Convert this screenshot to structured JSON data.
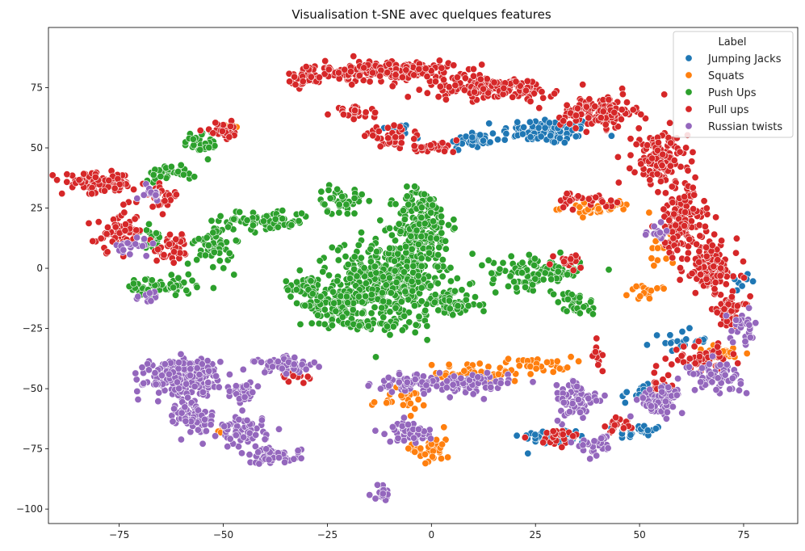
{
  "chart_data": {
    "type": "scatter",
    "title": "Visualisation t-SNE avec quelques features",
    "xlabel": "",
    "ylabel": "",
    "xlim": [
      -92,
      88
    ],
    "ylim": [
      -106,
      100
    ],
    "xticks": [
      -75,
      -50,
      -25,
      0,
      25,
      50,
      75
    ],
    "yticks": [
      -100,
      -75,
      -50,
      -25,
      0,
      25,
      50,
      75
    ],
    "xtick_labels": [
      "−75",
      "−50",
      "−25",
      "0",
      "25",
      "50",
      "75"
    ],
    "ytick_labels": [
      "−100",
      "−75",
      "−50",
      "−25",
      "0",
      "25",
      "50",
      "75"
    ],
    "grid": false,
    "legend": {
      "title": "Label",
      "placement": "top-right",
      "entries": [
        "Jumping Jacks",
        "Squats",
        "Push Ups",
        "Pull ups",
        "Russian twists"
      ]
    },
    "series": [
      {
        "name": "Jumping Jacks",
        "color": "#1f77b4",
        "clusters": [
          {
            "cx": 28,
            "cy": 57,
            "rx": 10,
            "ry": 5,
            "n": 90
          },
          {
            "cx": 10,
            "cy": 53,
            "rx": 6,
            "ry": 4,
            "n": 40
          },
          {
            "cx": -8,
            "cy": 58,
            "rx": 4,
            "ry": 2,
            "n": 15
          },
          {
            "cx": 30,
            "cy": -70,
            "rx": 8,
            "ry": 3,
            "n": 40
          },
          {
            "cx": 50,
            "cy": -68,
            "rx": 5,
            "ry": 3,
            "n": 25
          },
          {
            "cx": 50,
            "cy": -52,
            "rx": 4,
            "ry": 3,
            "n": 15
          },
          {
            "cx": 60,
            "cy": -30,
            "rx": 6,
            "ry": 4,
            "n": 20
          },
          {
            "cx": 72,
            "cy": -5,
            "rx": 4,
            "ry": 4,
            "n": 10
          }
        ]
      },
      {
        "name": "Squats",
        "color": "#ff7f0e",
        "clusters": [
          {
            "cx": 0,
            "cy": -75,
            "rx": 4,
            "ry": 7,
            "n": 35
          },
          {
            "cx": 10,
            "cy": -44,
            "rx": 12,
            "ry": 4,
            "n": 50
          },
          {
            "cx": 25,
            "cy": -40,
            "rx": 8,
            "ry": 3,
            "n": 30
          },
          {
            "cx": -8,
            "cy": -55,
            "rx": 6,
            "ry": 4,
            "n": 25
          },
          {
            "cx": 40,
            "cy": 25,
            "rx": 8,
            "ry": 3,
            "n": 35
          },
          {
            "cx": 55,
            "cy": 8,
            "rx": 3,
            "ry": 5,
            "n": 15
          },
          {
            "cx": 52,
            "cy": -10,
            "rx": 4,
            "ry": 3,
            "n": 15
          },
          {
            "cx": 70,
            "cy": -35,
            "rx": 6,
            "ry": 3,
            "n": 25
          },
          {
            "cx": -50,
            "cy": -68,
            "rx": 2,
            "ry": 2,
            "n": 5
          },
          {
            "cx": -48,
            "cy": 58,
            "rx": 3,
            "ry": 2,
            "n": 6
          }
        ]
      },
      {
        "name": "Push Ups",
        "color": "#2ca02c",
        "clusters": [
          {
            "cx": -10,
            "cy": -5,
            "rx": 12,
            "ry": 15,
            "n": 400
          },
          {
            "cx": -2,
            "cy": 18,
            "rx": 6,
            "ry": 14,
            "n": 200
          },
          {
            "cx": -22,
            "cy": -15,
            "rx": 6,
            "ry": 6,
            "n": 80
          },
          {
            "cx": -30,
            "cy": -8,
            "rx": 5,
            "ry": 6,
            "n": 50
          },
          {
            "cx": 25,
            "cy": -2,
            "rx": 10,
            "ry": 6,
            "n": 110
          },
          {
            "cx": 5,
            "cy": -15,
            "rx": 6,
            "ry": 4,
            "n": 60
          },
          {
            "cx": -40,
            "cy": 20,
            "rx": 10,
            "ry": 4,
            "n": 70
          },
          {
            "cx": -52,
            "cy": 10,
            "rx": 4,
            "ry": 8,
            "n": 60
          },
          {
            "cx": -65,
            "cy": -8,
            "rx": 8,
            "ry": 4,
            "n": 60
          },
          {
            "cx": -63,
            "cy": 40,
            "rx": 6,
            "ry": 3,
            "n": 30
          },
          {
            "cx": -55,
            "cy": 52,
            "rx": 4,
            "ry": 5,
            "n": 30
          },
          {
            "cx": -22,
            "cy": 28,
            "rx": 5,
            "ry": 5,
            "n": 40
          },
          {
            "cx": -15,
            "cy": -23,
            "rx": 10,
            "ry": 2,
            "n": 50
          },
          {
            "cx": 35,
            "cy": -15,
            "rx": 4,
            "ry": 5,
            "n": 30
          },
          {
            "cx": -68,
            "cy": 12,
            "rx": 3,
            "ry": 4,
            "n": 25
          }
        ]
      },
      {
        "name": "Pull ups",
        "color": "#d62728",
        "clusters": [
          {
            "cx": -10,
            "cy": 82,
            "rx": 14,
            "ry": 4,
            "n": 200
          },
          {
            "cx": -30,
            "cy": 80,
            "rx": 4,
            "ry": 4,
            "n": 40
          },
          {
            "cx": 15,
            "cy": 75,
            "rx": 14,
            "ry": 4,
            "n": 160
          },
          {
            "cx": 40,
            "cy": 65,
            "rx": 8,
            "ry": 6,
            "n": 140
          },
          {
            "cx": 55,
            "cy": 45,
            "rx": 6,
            "ry": 10,
            "n": 140
          },
          {
            "cx": 60,
            "cy": 20,
            "rx": 5,
            "ry": 12,
            "n": 140
          },
          {
            "cx": 67,
            "cy": 0,
            "rx": 6,
            "ry": 10,
            "n": 130
          },
          {
            "cx": 72,
            "cy": -18,
            "rx": 4,
            "ry": 6,
            "n": 50
          },
          {
            "cx": -10,
            "cy": 55,
            "rx": 5,
            "ry": 3,
            "n": 40
          },
          {
            "cx": 0,
            "cy": 50,
            "rx": 6,
            "ry": 2,
            "n": 30
          },
          {
            "cx": -18,
            "cy": 65,
            "rx": 5,
            "ry": 2,
            "n": 25
          },
          {
            "cx": -80,
            "cy": 35,
            "rx": 8,
            "ry": 4,
            "n": 100
          },
          {
            "cx": -75,
            "cy": 15,
            "rx": 5,
            "ry": 7,
            "n": 60
          },
          {
            "cx": -62,
            "cy": 8,
            "rx": 4,
            "ry": 6,
            "n": 40
          },
          {
            "cx": -65,
            "cy": 30,
            "rx": 4,
            "ry": 4,
            "n": 30
          },
          {
            "cx": -50,
            "cy": 57,
            "rx": 4,
            "ry": 3,
            "n": 25
          },
          {
            "cx": 30,
            "cy": -70,
            "rx": 6,
            "ry": 3,
            "n": 25
          },
          {
            "cx": 45,
            "cy": -65,
            "rx": 4,
            "ry": 3,
            "n": 20
          },
          {
            "cx": 65,
            "cy": -38,
            "rx": 6,
            "ry": 5,
            "n": 50
          },
          {
            "cx": 55,
            "cy": -50,
            "rx": 3,
            "ry": 4,
            "n": 25
          },
          {
            "cx": 37,
            "cy": 28,
            "rx": 6,
            "ry": 3,
            "n": 25
          },
          {
            "cx": 33,
            "cy": 3,
            "rx": 3,
            "ry": 3,
            "n": 15
          },
          {
            "cx": -33,
            "cy": -45,
            "rx": 4,
            "ry": 2,
            "n": 10
          },
          {
            "cx": 40,
            "cy": -35,
            "rx": 2,
            "ry": 4,
            "n": 12
          }
        ]
      },
      {
        "name": "Russian twists",
        "color": "#9467bd",
        "clusters": [
          {
            "cx": -60,
            "cy": -45,
            "rx": 8,
            "ry": 7,
            "n": 240
          },
          {
            "cx": -57,
            "cy": -62,
            "rx": 4,
            "ry": 6,
            "n": 80
          },
          {
            "cx": -45,
            "cy": -68,
            "rx": 5,
            "ry": 6,
            "n": 70
          },
          {
            "cx": -38,
            "cy": -78,
            "rx": 6,
            "ry": 3,
            "n": 50
          },
          {
            "cx": -35,
            "cy": -40,
            "rx": 7,
            "ry": 3,
            "n": 60
          },
          {
            "cx": -45,
            "cy": -52,
            "rx": 3,
            "ry": 4,
            "n": 30
          },
          {
            "cx": -5,
            "cy": -48,
            "rx": 8,
            "ry": 3,
            "n": 70
          },
          {
            "cx": 10,
            "cy": -48,
            "rx": 8,
            "ry": 4,
            "n": 70
          },
          {
            "cx": -5,
            "cy": -68,
            "rx": 5,
            "ry": 4,
            "n": 40
          },
          {
            "cx": -12,
            "cy": -93,
            "rx": 2,
            "ry": 3,
            "n": 20
          },
          {
            "cx": 35,
            "cy": -55,
            "rx": 5,
            "ry": 8,
            "n": 70
          },
          {
            "cx": 55,
            "cy": -55,
            "rx": 5,
            "ry": 6,
            "n": 70
          },
          {
            "cx": 68,
            "cy": -45,
            "rx": 6,
            "ry": 5,
            "n": 70
          },
          {
            "cx": 75,
            "cy": -25,
            "rx": 3,
            "ry": 6,
            "n": 30
          },
          {
            "cx": 54,
            "cy": 15,
            "rx": 3,
            "ry": 3,
            "n": 15
          },
          {
            "cx": -72,
            "cy": 10,
            "rx": 4,
            "ry": 3,
            "n": 20
          },
          {
            "cx": -68,
            "cy": -12,
            "rx": 3,
            "ry": 2,
            "n": 10
          },
          {
            "cx": 40,
            "cy": -73,
            "rx": 4,
            "ry": 4,
            "n": 30
          },
          {
            "cx": -67,
            "cy": 32,
            "rx": 3,
            "ry": 4,
            "n": 15
          }
        ]
      }
    ]
  }
}
